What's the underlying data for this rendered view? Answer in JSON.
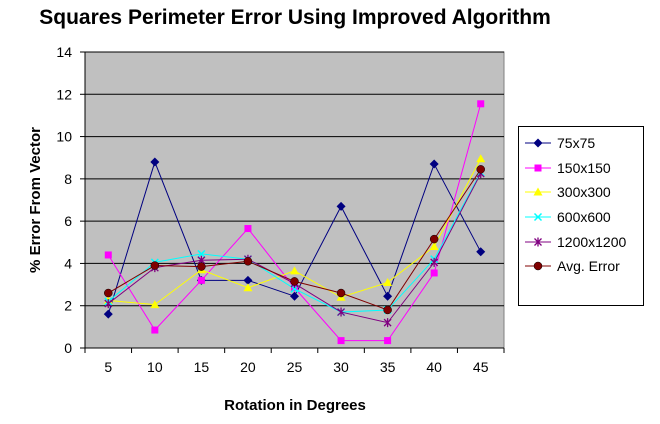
{
  "chart_data": {
    "type": "line",
    "title": "Squares Perimeter Error Using Improved Algorithm",
    "xlabel": "Rotation in Degrees",
    "ylabel": "% Error From Vector",
    "categories": [
      "5",
      "10",
      "15",
      "20",
      "25",
      "30",
      "35",
      "40",
      "45"
    ],
    "ylim": [
      0,
      14
    ],
    "yticks": [
      0,
      2,
      4,
      6,
      8,
      10,
      12,
      14
    ],
    "grid": "horizontal major gridlines",
    "plot_background": "#C0C0C0",
    "legend_position": "right",
    "series": [
      {
        "name": "75x75",
        "color": "#000080",
        "marker": "diamond",
        "values": [
          1.6,
          8.8,
          3.2,
          3.2,
          2.45,
          6.7,
          2.45,
          8.7,
          4.55
        ]
      },
      {
        "name": "150x150",
        "color": "#FF00FF",
        "marker": "square",
        "values": [
          4.4,
          0.85,
          3.2,
          5.65,
          2.85,
          0.35,
          0.35,
          3.55,
          11.55
        ]
      },
      {
        "name": "300x300",
        "color": "#FFFF00",
        "marker": "triangle",
        "values": [
          2.25,
          2.05,
          3.7,
          2.85,
          3.65,
          2.4,
          3.1,
          4.8,
          8.95
        ]
      },
      {
        "name": "600x600",
        "color": "#00FFFF",
        "marker": "x",
        "values": [
          2.2,
          4.05,
          4.45,
          4.2,
          2.8,
          1.7,
          1.8,
          4.2,
          8.3
        ]
      },
      {
        "name": "1200x1200",
        "color": "#800080",
        "marker": "star",
        "values": [
          2.1,
          3.8,
          4.15,
          4.2,
          3.05,
          1.7,
          1.2,
          4.05,
          8.25
        ]
      },
      {
        "name": "Avg. Error",
        "color": "#800000",
        "marker": "circle",
        "values": [
          2.6,
          3.9,
          3.85,
          4.1,
          3.15,
          2.6,
          1.8,
          5.15,
          8.45
        ]
      }
    ]
  }
}
